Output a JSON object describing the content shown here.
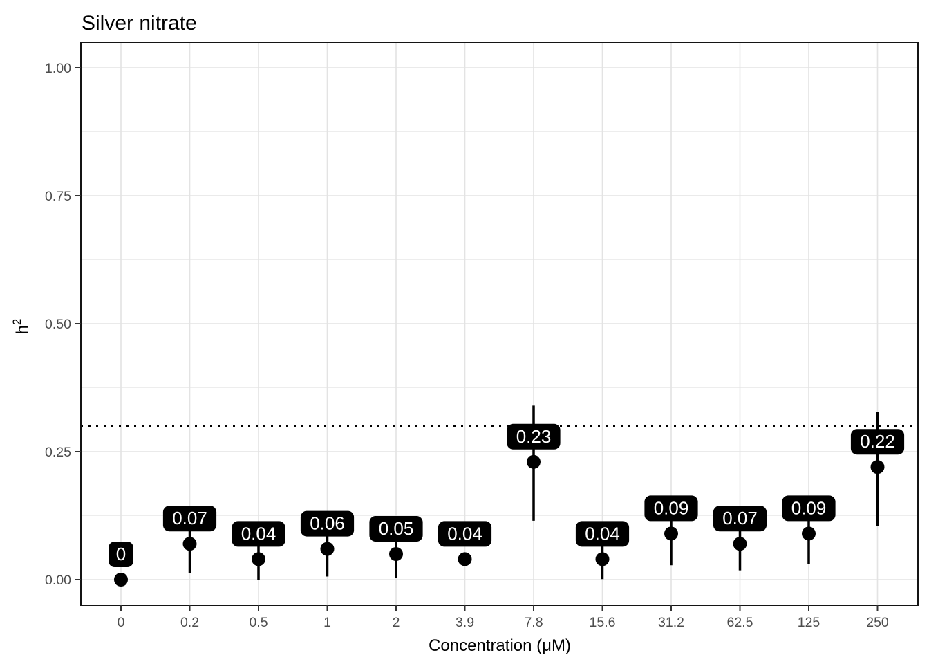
{
  "chart_data": {
    "type": "scatter",
    "title": "Silver nitrate",
    "xlabel": "Concentration (μM)",
    "ylabel": "h²",
    "ylabel_base": "h",
    "ylabel_sup": "2",
    "x_categories": [
      "0",
      "0.2",
      "0.5",
      "1",
      "2",
      "3.9",
      "7.8",
      "15.6",
      "31.2",
      "62.5",
      "125",
      "250"
    ],
    "points": [
      {
        "x": "0",
        "value": 0.0,
        "label": "0",
        "err_low": null,
        "err_high": null
      },
      {
        "x": "0.2",
        "value": 0.07,
        "label": "0.07",
        "err_low": 0.013,
        "err_high": 0.127
      },
      {
        "x": "0.5",
        "value": 0.04,
        "label": "0.04",
        "err_low": 0.0,
        "err_high": 0.08
      },
      {
        "x": "1",
        "value": 0.06,
        "label": "0.06",
        "err_low": 0.006,
        "err_high": 0.114
      },
      {
        "x": "2",
        "value": 0.05,
        "label": "0.05",
        "err_low": 0.004,
        "err_high": 0.096
      },
      {
        "x": "3.9",
        "value": 0.04,
        "label": "0.04",
        "err_low": null,
        "err_high": null
      },
      {
        "x": "7.8",
        "value": 0.23,
        "label": "0.23",
        "err_low": 0.115,
        "err_high": 0.34
      },
      {
        "x": "15.6",
        "value": 0.04,
        "label": "0.04",
        "err_low": 0.001,
        "err_high": 0.079
      },
      {
        "x": "31.2",
        "value": 0.09,
        "label": "0.09",
        "err_low": 0.028,
        "err_high": 0.152
      },
      {
        "x": "62.5",
        "value": 0.07,
        "label": "0.07",
        "err_low": 0.018,
        "err_high": 0.122
      },
      {
        "x": "125",
        "value": 0.09,
        "label": "0.09",
        "err_low": 0.031,
        "err_high": 0.149
      },
      {
        "x": "250",
        "value": 0.22,
        "label": "0.22",
        "err_low": 0.105,
        "err_high": 0.327
      }
    ],
    "y_ticks": [
      {
        "v": 0.0,
        "label": "0.00"
      },
      {
        "v": 0.25,
        "label": "0.25"
      },
      {
        "v": 0.5,
        "label": "0.50"
      },
      {
        "v": 0.75,
        "label": "0.75"
      },
      {
        "v": 1.0,
        "label": "1.00"
      }
    ],
    "y_minor": [
      0.125,
      0.375,
      0.625,
      0.875
    ],
    "ylim": [
      0,
      1
    ],
    "reference_line": {
      "y": 0.3,
      "style": "dotted"
    },
    "grid": true,
    "legend": "none",
    "colors": {
      "point": "#000000",
      "error_bar": "#000000",
      "label_bg": "#000000",
      "label_text": "#ffffff",
      "grid_major": "#e3e3e3",
      "grid_minor": "#ededed",
      "tick_text": "#4d4d4d",
      "tick_mark": "#333333",
      "axis_text": "#000000",
      "border": "#141414",
      "reference": "#000000",
      "background": "#ffffff"
    }
  }
}
